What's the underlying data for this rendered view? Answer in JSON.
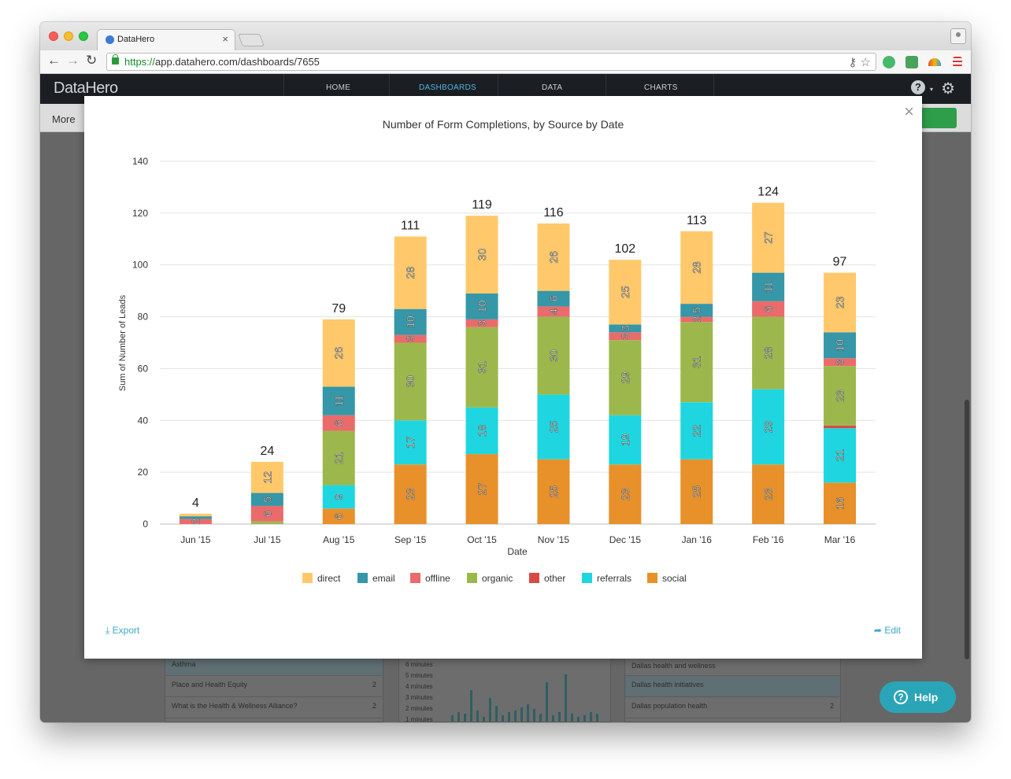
{
  "browser": {
    "tab_title": "DataHero",
    "tab_close": "×",
    "url_scheme": "https://",
    "url_rest": "app.datahero.com/dashboards/7655",
    "back": "←",
    "forward": "→",
    "reload": "↻",
    "key_icon": "⚷",
    "star_icon": "☆"
  },
  "app": {
    "logo": "DataHero",
    "nav": [
      "HOME",
      "DASHBOARDS",
      "DATA",
      "CHARTS"
    ],
    "active_nav": "DASHBOARDS",
    "help_glyph": "?",
    "caret": "▾",
    "gear": "⚙",
    "more": "More"
  },
  "background": {
    "left_rows": [
      {
        "label": "Asthma",
        "value": ""
      },
      {
        "label": "Place and Health Equity",
        "value": "2"
      },
      {
        "label": "What is the Health & Wellness Alliance?",
        "value": "2"
      }
    ],
    "mid_axis": [
      "6 minutes",
      "5 minutes",
      "4 minutes",
      "3 minutes",
      "2 minutes",
      "1 minutes"
    ],
    "right_rows": [
      {
        "label": "Dallas health and wellness",
        "value": ""
      },
      {
        "label": "Dallas health initiatives",
        "value": ""
      },
      {
        "label": "Dallas population health",
        "value": "2"
      }
    ]
  },
  "modal": {
    "close": "×",
    "export_label": "Export",
    "export_icon": "⤓",
    "edit_label": "Edit",
    "edit_icon": "➦"
  },
  "help": {
    "label": "Help",
    "icon": "?"
  },
  "chart_data": {
    "type": "bar",
    "stacked": true,
    "title": "Number of Form Completions, by Source by Date",
    "xlabel": "Date",
    "ylabel": "Sum of Number of Leads",
    "ylim": [
      0,
      140
    ],
    "yticks": [
      0,
      20,
      40,
      60,
      80,
      100,
      120,
      140
    ],
    "legend_position": "bottom",
    "grid": true,
    "categories": [
      "Jun '15",
      "Jul '15",
      "Aug '15",
      "Sep '15",
      "Oct '15",
      "Nov '15",
      "Dec '15",
      "Jan '16",
      "Feb '16",
      "Mar '16"
    ],
    "totals": [
      4,
      24,
      79,
      111,
      119,
      116,
      102,
      113,
      124,
      97
    ],
    "series": [
      {
        "name": "social",
        "color": "#e8902a",
        "values": [
          0,
          0,
          6,
          23,
          27,
          25,
          23,
          25,
          23,
          16
        ]
      },
      {
        "name": "referrals",
        "color": "#1fd6e0",
        "values": [
          0,
          0,
          9,
          17,
          18,
          25,
          19,
          22,
          29,
          21
        ]
      },
      {
        "name": "other",
        "color": "#d94a47",
        "values": [
          0,
          0,
          0,
          0,
          0,
          0,
          0,
          0,
          0,
          1
        ]
      },
      {
        "name": "organic",
        "color": "#9cb84c",
        "values": [
          0,
          1,
          21,
          30,
          31,
          30,
          29,
          31,
          28,
          23
        ]
      },
      {
        "name": "offline",
        "color": "#ea6b6b",
        "values": [
          2,
          6,
          6,
          3,
          3,
          4,
          3,
          2,
          6,
          3
        ]
      },
      {
        "name": "email",
        "color": "#3597a8",
        "values": [
          1,
          5,
          11,
          10,
          10,
          6,
          3,
          5,
          11,
          10
        ]
      },
      {
        "name": "direct",
        "color": "#ffc96b",
        "values": [
          1,
          12,
          26,
          28,
          30,
          26,
          25,
          28,
          27,
          23
        ]
      }
    ],
    "segment_labels": [
      [
        "",
        "",
        "",
        "",
        "2",
        "",
        ""
      ],
      [
        "",
        "",
        "",
        "",
        "6",
        "5",
        "12"
      ],
      [
        "6",
        "9",
        "",
        "21",
        "6",
        "11",
        "26"
      ],
      [
        "23",
        "17",
        "",
        "30",
        "3",
        "10",
        "28"
      ],
      [
        "27",
        "18",
        "",
        "31",
        "3",
        "10",
        "30"
      ],
      [
        "25",
        "25",
        "",
        "30",
        "4",
        "6",
        "26"
      ],
      [
        "23",
        "19",
        "",
        "29",
        "3",
        "3",
        "25"
      ],
      [
        "25",
        "22",
        "",
        "31",
        "2",
        "5",
        "28"
      ],
      [
        "23",
        "29",
        "",
        "28",
        "6",
        "11",
        "27"
      ],
      [
        "16",
        "21",
        "",
        "23",
        "3",
        "10",
        "23"
      ]
    ],
    "legend_order": [
      "direct",
      "email",
      "offline",
      "organic",
      "other",
      "referrals",
      "social"
    ]
  }
}
